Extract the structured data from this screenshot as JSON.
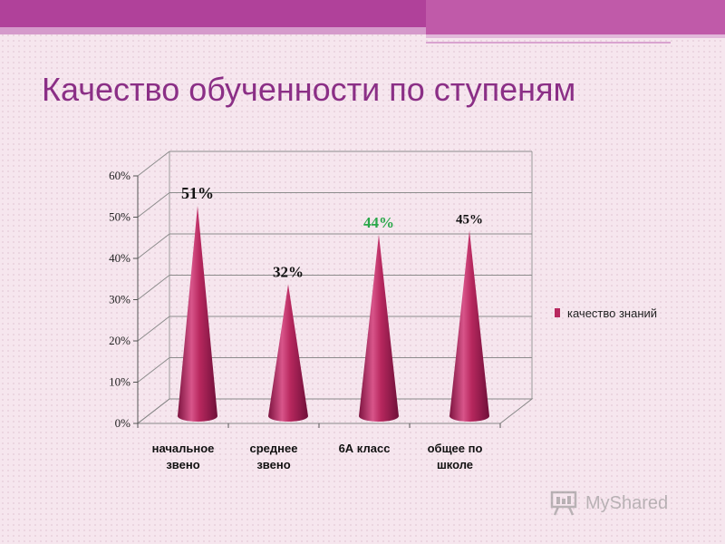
{
  "page": {
    "title": "Качество обученности по ступеням",
    "watermark": "MyShared"
  },
  "colors": {
    "accent": "#b0419a",
    "title": "#8b2f86",
    "cone": "#b8285f",
    "highlight_label": "#2aa84a"
  },
  "chart_data": {
    "type": "bar",
    "style": "3d-cone",
    "categories": [
      [
        "начальное",
        "звено"
      ],
      [
        "среднее",
        "звено"
      ],
      [
        "6А класс"
      ],
      [
        "общее по",
        "школе"
      ]
    ],
    "series": [
      {
        "name": "качество знаний",
        "values": [
          51,
          32,
          44,
          45
        ]
      }
    ],
    "data_labels": [
      "51%",
      "32%",
      "44%",
      "45%"
    ],
    "data_label_colors": [
      "#111111",
      "#111111",
      "#2aa84a",
      "#111111"
    ],
    "y_ticks": [
      "0%",
      "10%",
      "20%",
      "30%",
      "40%",
      "50%",
      "60%"
    ],
    "ylim": [
      0,
      60
    ],
    "grid": true,
    "legend_position": "right"
  }
}
